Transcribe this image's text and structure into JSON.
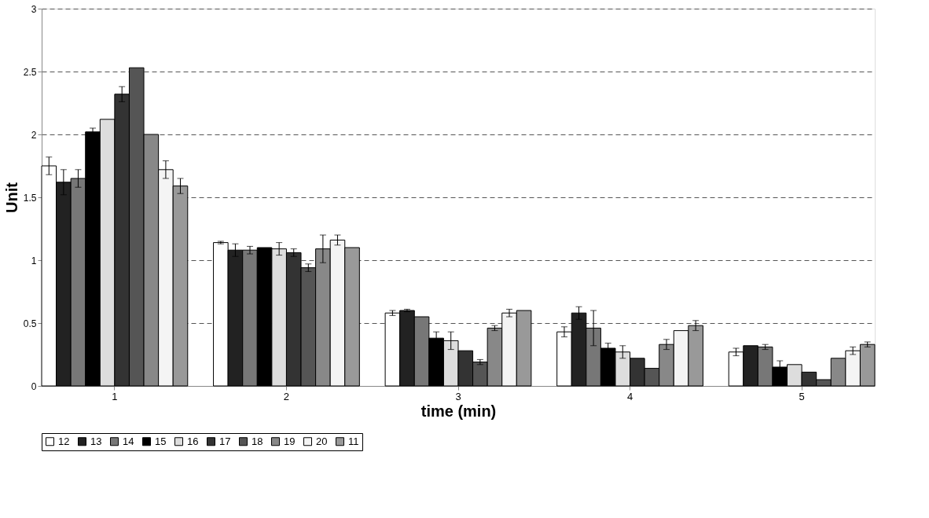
{
  "chart_data": {
    "type": "bar",
    "xlabel": "time (min)",
    "ylabel": "Unit",
    "categories": [
      "1",
      "2",
      "3",
      "4",
      "5"
    ],
    "ylim": [
      0,
      3
    ],
    "yticks": [
      0,
      0.5,
      1,
      1.5,
      2,
      2.5,
      3
    ],
    "grid": "y",
    "legend": "bottom",
    "series": [
      {
        "name": "12",
        "color": "#ffffff",
        "values": [
          1.75,
          1.14,
          0.58,
          0.43,
          0.27
        ],
        "errors": [
          0.07,
          0.01,
          0.02,
          0.04,
          0.03
        ]
      },
      {
        "name": "13",
        "color": "#222222",
        "values": [
          1.62,
          1.08,
          0.6,
          0.58,
          0.32
        ],
        "errors": [
          0.1,
          0.05,
          0.01,
          0.05,
          null
        ]
      },
      {
        "name": "14",
        "color": "#777777",
        "values": [
          1.65,
          1.08,
          0.55,
          0.46,
          0.31
        ],
        "errors": [
          0.07,
          0.03,
          null,
          0.14,
          0.02
        ]
      },
      {
        "name": "15",
        "color": "#000000",
        "values": [
          2.02,
          1.1,
          0.38,
          0.3,
          0.15
        ],
        "errors": [
          0.03,
          null,
          0.05,
          0.04,
          0.05
        ]
      },
      {
        "name": "16",
        "color": "#dddddd",
        "values": [
          2.12,
          1.09,
          0.36,
          0.27,
          0.17
        ],
        "errors": [
          null,
          0.05,
          0.07,
          0.05,
          null
        ]
      },
      {
        "name": "17",
        "color": "#333333",
        "values": [
          2.32,
          1.06,
          0.28,
          0.22,
          0.11
        ],
        "errors": [
          0.06,
          0.03,
          null,
          null,
          null
        ]
      },
      {
        "name": "18",
        "color": "#555555",
        "values": [
          2.53,
          0.94,
          0.19,
          0.14,
          0.05
        ],
        "errors": [
          null,
          0.03,
          0.02,
          null,
          null
        ]
      },
      {
        "name": "19",
        "color": "#888888",
        "values": [
          2.0,
          1.09,
          0.46,
          0.33,
          0.22
        ],
        "errors": [
          null,
          0.11,
          0.02,
          0.04,
          null
        ]
      },
      {
        "name": "20",
        "color": "#f4f4f4",
        "values": [
          1.72,
          1.16,
          0.58,
          0.44,
          0.28
        ],
        "errors": [
          0.07,
          0.04,
          0.03,
          null,
          0.03
        ]
      },
      {
        "name": "11",
        "color": "#999999",
        "values": [
          1.59,
          1.1,
          0.6,
          0.48,
          0.33
        ],
        "errors": [
          0.06,
          null,
          null,
          0.04,
          0.02
        ]
      }
    ]
  }
}
